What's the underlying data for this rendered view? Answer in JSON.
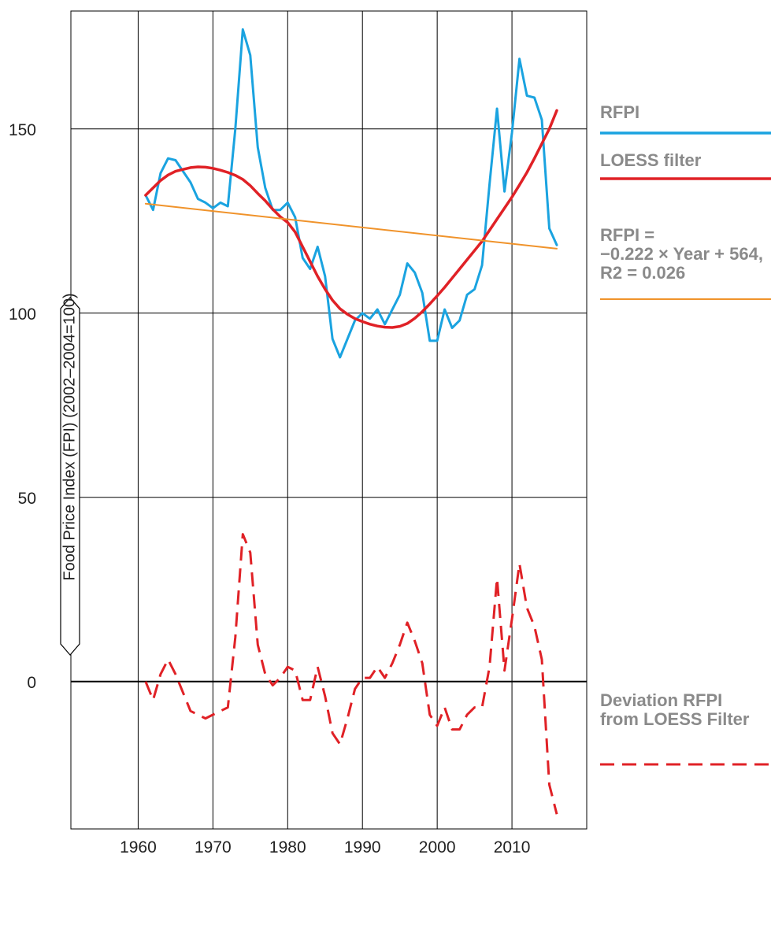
{
  "page_title": "",
  "chart_data": {
    "type": "line",
    "title": "",
    "xlabel": "",
    "ylabel": "Food Price Index (FPI) (2002–2004=100)",
    "xlim": [
      1951,
      2020
    ],
    "ylim": [
      -40,
      182
    ],
    "x_ticks": [
      1960,
      1970,
      1980,
      1990,
      2000,
      2010
    ],
    "y_ticks": [
      0,
      50,
      100,
      150
    ],
    "grid": true,
    "legend_position": "right",
    "colors": {
      "rfpi": "#1aa3e0",
      "loess": "#e02126",
      "trend": "#f0932b",
      "deviation": "#e02126",
      "grid": "#000000",
      "legend_text": "#8a8a8a"
    },
    "series": [
      {
        "key": "rfpi",
        "name": "RFPI",
        "style": "solid",
        "x": [
          1961,
          1962,
          1963,
          1964,
          1965,
          1966,
          1967,
          1968,
          1969,
          1970,
          1971,
          1972,
          1973,
          1974,
          1975,
          1976,
          1977,
          1978,
          1979,
          1980,
          1981,
          1982,
          1983,
          1984,
          1985,
          1986,
          1987,
          1988,
          1989,
          1990,
          1991,
          1992,
          1993,
          1994,
          1995,
          1996,
          1997,
          1998,
          1999,
          2000,
          2001,
          2002,
          2003,
          2004,
          2005,
          2006,
          2007,
          2008,
          2009,
          2010,
          2011,
          2012,
          2013,
          2014,
          2015,
          2016
        ],
        "y": [
          132,
          128,
          138,
          142,
          141.5,
          138.5,
          135.5,
          131,
          130,
          128.5,
          130,
          129,
          150,
          177,
          170,
          145,
          134,
          128,
          128,
          130,
          126,
          115,
          112,
          118,
          110,
          93,
          88,
          93,
          98,
          100,
          98.5,
          101,
          97,
          101,
          105,
          113.5,
          111,
          105.5,
          92.5,
          92.5,
          101,
          96,
          98,
          105,
          106.5,
          113,
          135,
          155.5,
          133,
          149,
          169,
          159,
          158.5,
          152.5,
          123,
          118.5
        ]
      },
      {
        "key": "loess",
        "name": "LOESS filter",
        "style": "solid",
        "x": [
          1961,
          1962,
          1963,
          1964,
          1965,
          1966,
          1967,
          1968,
          1969,
          1970,
          1971,
          1972,
          1973,
          1974,
          1975,
          1976,
          1977,
          1978,
          1979,
          1980,
          1981,
          1982,
          1983,
          1984,
          1985,
          1986,
          1987,
          1988,
          1989,
          1990,
          1991,
          1992,
          1993,
          1994,
          1995,
          1996,
          1997,
          1998,
          1999,
          2000,
          2001,
          2002,
          2003,
          2004,
          2005,
          2006,
          2007,
          2008,
          2009,
          2010,
          2011,
          2012,
          2013,
          2014,
          2015,
          2016
        ],
        "y": [
          132,
          134,
          136,
          137.5,
          138.5,
          139,
          139.5,
          139.7,
          139.6,
          139.3,
          138.8,
          138.2,
          137.4,
          136.3,
          134.6,
          132.5,
          130.5,
          128.2,
          126.2,
          124.6,
          122,
          118,
          114,
          110,
          106.5,
          103.5,
          101.2,
          99.7,
          98.5,
          97.7,
          97,
          96.5,
          96.2,
          96.1,
          96.4,
          97.2,
          98.6,
          100.4,
          102.5,
          104.7,
          107,
          109.5,
          112,
          114.5,
          117,
          119.5,
          122.5,
          125.5,
          128.5,
          131.5,
          134.8,
          138.2,
          142,
          146,
          150,
          155
        ]
      },
      {
        "key": "trend",
        "name": "RFPI = −0.222 × Year + 564, R2 = 0.026",
        "style": "solid",
        "x": [
          1961,
          2016
        ],
        "y": [
          129.7,
          117.5
        ]
      },
      {
        "key": "deviation",
        "name": "Deviation RFPI from LOESS Filter",
        "style": "dashed",
        "x": [
          1961,
          1962,
          1963,
          1964,
          1965,
          1966,
          1967,
          1968,
          1969,
          1970,
          1971,
          1972,
          1973,
          1974,
          1975,
          1976,
          1977,
          1978,
          1979,
          1980,
          1981,
          1982,
          1983,
          1984,
          1985,
          1986,
          1987,
          1988,
          1989,
          1990,
          1991,
          1992,
          1993,
          1994,
          1995,
          1996,
          1997,
          1998,
          1999,
          2000,
          2001,
          2002,
          2003,
          2004,
          2005,
          2006,
          2007,
          2008,
          2009,
          2010,
          2011,
          2012,
          2013,
          2014,
          2015,
          2016
        ],
        "y": [
          0,
          -5,
          2,
          6,
          2,
          -3,
          -8,
          -9,
          -10,
          -9,
          -8,
          -7,
          12,
          40,
          35,
          10,
          2,
          -1,
          1,
          4,
          3,
          -5,
          -5,
          4,
          -4,
          -14,
          -17,
          -10,
          -2,
          1,
          1,
          4,
          1,
          5,
          10,
          16,
          11,
          5,
          -9,
          -12,
          -7,
          -13,
          -13,
          -9,
          -7,
          -7,
          4,
          28,
          3,
          17,
          32,
          20,
          15,
          6,
          -28,
          -36
        ]
      }
    ],
    "legend": [
      {
        "key": "rfpi",
        "lines": [
          "RFPI"
        ]
      },
      {
        "key": "loess",
        "lines": [
          "LOESS filter"
        ]
      },
      {
        "key": "trend",
        "lines": [
          "RFPI =",
          "−0.222 × Year + 564,",
          "R2 = 0.026"
        ]
      },
      {
        "key": "deviation",
        "lines": [
          "Deviation RFPI",
          "from LOESS Filter"
        ]
      }
    ]
  }
}
